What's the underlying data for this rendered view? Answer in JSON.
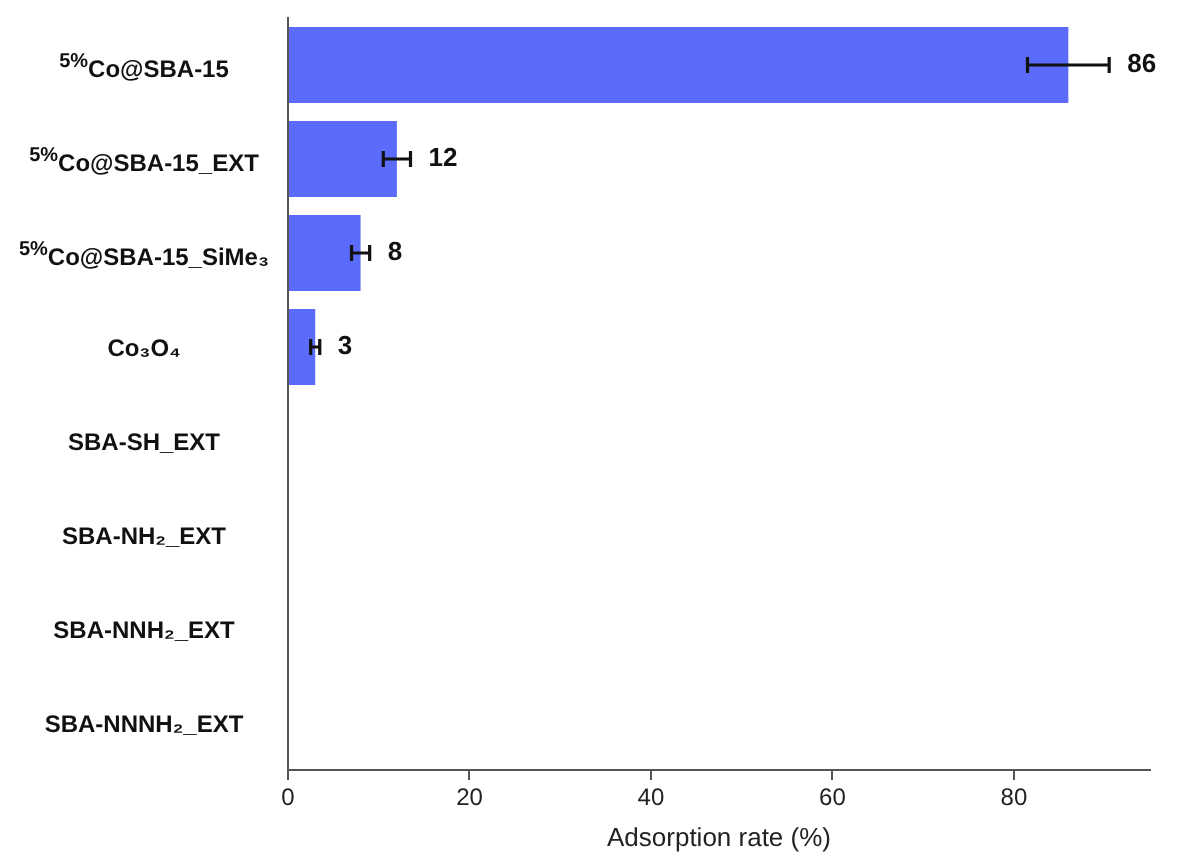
{
  "chart_data": {
    "type": "bar",
    "orientation": "horizontal",
    "xlabel": "Adsorption rate (%)",
    "categories": [
      "$^{5%}$Co@SBA-15",
      "$^{5%}$Co@SBA-15_EXT",
      "$^{5%}$Co@SBA-15_SiMe₃",
      "Co₃O₄",
      "SBA-SH_EXT",
      "SBA-NH₂_EXT",
      "SBA-NNH₂_EXT",
      "SBA-NNNH₂_EXT"
    ],
    "values": [
      86,
      12,
      8,
      3,
      0,
      0,
      0,
      0
    ],
    "errors": [
      4.5,
      1.5,
      1,
      0.5,
      null,
      null,
      null,
      null
    ],
    "value_labels": [
      "86",
      "12",
      "8",
      "3",
      null,
      null,
      null,
      null
    ],
    "color": "#5b6bfb",
    "xlim": [
      0,
      95
    ],
    "xticks": [
      0,
      20,
      40,
      60,
      80
    ],
    "grid": false,
    "legend": false
  }
}
